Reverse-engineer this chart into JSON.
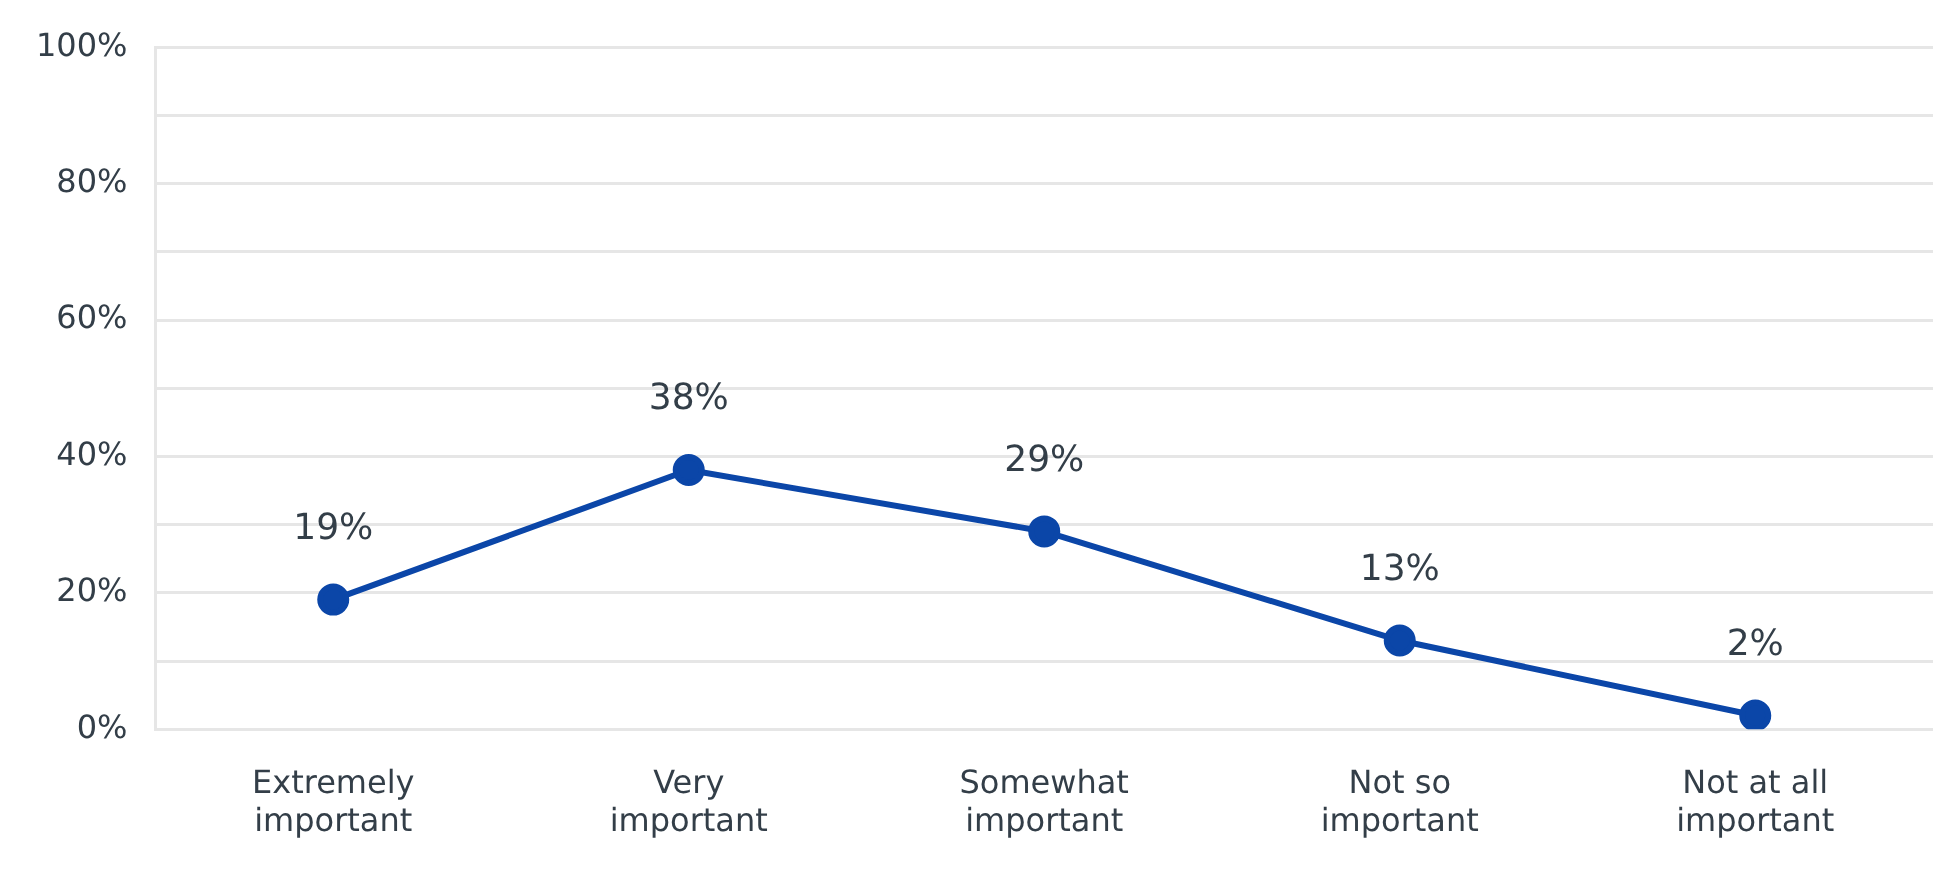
{
  "chart_data": {
    "type": "line",
    "categories": [
      "Extremely important",
      "Very important",
      "Somewhat important",
      "Not so important",
      "Not at all important"
    ],
    "series": [
      {
        "color": "#0b46a8",
        "values": [
          19,
          38,
          29,
          13,
          2
        ],
        "value_labels": [
          "19%",
          "38%",
          "29%",
          "13%",
          "2%"
        ]
      }
    ],
    "ylim": [
      0,
      100
    ],
    "yticks": [
      {
        "value": 0,
        "label": "0%"
      },
      {
        "value": 10,
        "label": null
      },
      {
        "value": 20,
        "label": "20%"
      },
      {
        "value": 30,
        "label": null
      },
      {
        "value": 40,
        "label": "40%"
      },
      {
        "value": 50,
        "label": null
      },
      {
        "value": 60,
        "label": "60%"
      },
      {
        "value": 70,
        "label": null
      },
      {
        "value": 80,
        "label": "80%"
      },
      {
        "value": 90,
        "label": null
      },
      {
        "value": 100,
        "label": "100%"
      }
    ],
    "grid": "y",
    "legend": false,
    "marker": "circle",
    "line_style": "solid"
  }
}
